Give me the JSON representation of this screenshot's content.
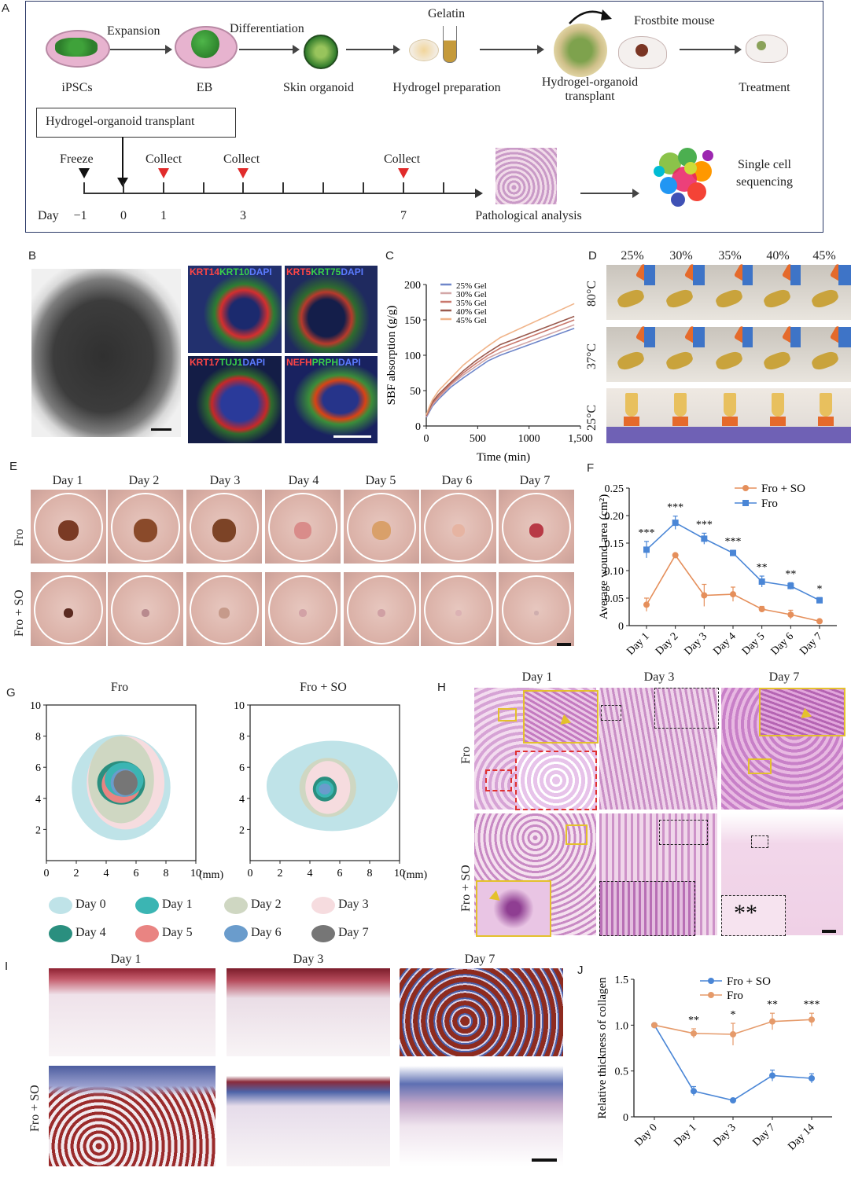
{
  "panelA": {
    "panel_label": "A",
    "steps": [
      "iPSCs",
      "EB",
      "Skin organoid",
      "Hydrogel preparation",
      "Hydrogel-organoid transplant",
      "Treatment"
    ],
    "arrows": [
      "Expansion",
      "Differentiation"
    ],
    "gelatin": "Gelatin",
    "frostbite_mouse": "Frostbite mouse",
    "timeline_box": "Hydrogel-organoid transplant",
    "freeze": "Freeze",
    "collect": "Collect",
    "day_label": "Day",
    "days": [
      "−1",
      "0",
      "1",
      "3",
      "7"
    ],
    "pathology": "Pathological analysis",
    "single_cell": "Single cell sequencing",
    "colors": {
      "collect_marker": "#e12b2b",
      "freeze_marker": "#111111"
    }
  },
  "panelB": {
    "panel_label": "B",
    "stains": [
      {
        "parts": [
          {
            "text": "KRT14",
            "color": "#ff4646"
          },
          {
            "text": "KRT10",
            "color": "#39d14a"
          },
          {
            "text": "DAPI",
            "color": "#5b7bff"
          }
        ]
      },
      {
        "parts": [
          {
            "text": "KRT5",
            "color": "#ff4646"
          },
          {
            "text": "KRT75",
            "color": "#39d14a"
          },
          {
            "text": "DAPI",
            "color": "#5b7bff"
          }
        ]
      },
      {
        "parts": [
          {
            "text": "KRT17",
            "color": "#ff4646"
          },
          {
            "text": "TUJ1",
            "color": "#39d14a"
          },
          {
            "text": "DAPI",
            "color": "#5b7bff"
          }
        ]
      },
      {
        "parts": [
          {
            "text": "NEFH",
            "color": "#ff4646"
          },
          {
            "text": "PRPH",
            "color": "#39d14a"
          },
          {
            "text": "DAPI",
            "color": "#5b7bff"
          }
        ]
      }
    ]
  },
  "panelC": {
    "panel_label": "C"
  },
  "panelD": {
    "panel_label": "D",
    "concentrations": [
      "25%",
      "30%",
      "35%",
      "40%",
      "45%"
    ],
    "temperatures": [
      "80°C",
      "37°C",
      "25°C"
    ]
  },
  "panelE": {
    "panel_label": "E",
    "days": [
      "Day 1",
      "Day 2",
      "Day 3",
      "Day 4",
      "Day 5",
      "Day 6",
      "Day 7"
    ],
    "groups": [
      "Fro",
      "Fro + SO"
    ]
  },
  "panelF": {
    "panel_label": "F"
  },
  "panelG": {
    "panel_label": "G",
    "maps": [
      "Fro",
      "Fro + SO"
    ],
    "unit": "(mm)",
    "ticks": [
      "0",
      "2",
      "4",
      "6",
      "8",
      "10"
    ],
    "legend": [
      {
        "label": "Day 0",
        "color": "#bfe3e8"
      },
      {
        "label": "Day 1",
        "color": "#3bb5b3"
      },
      {
        "label": "Day 2",
        "color": "#cfd7c2"
      },
      {
        "label": "Day 3",
        "color": "#f6dcdf"
      },
      {
        "label": "Day 4",
        "color": "#2a8f7f"
      },
      {
        "label": "Day 5",
        "color": "#e98482"
      },
      {
        "label": "Day 6",
        "color": "#6a9ccc"
      },
      {
        "label": "Day 7",
        "color": "#767676"
      }
    ]
  },
  "panelH": {
    "panel_label": "H",
    "days": [
      "Day  1",
      "Day  3",
      "Day  7"
    ],
    "groups": [
      "Fro",
      "Fro + SO"
    ],
    "asterisks": "**"
  },
  "panelI": {
    "panel_label": "I",
    "days": [
      "Day 1",
      "Day 3",
      "Day 7"
    ],
    "groups": [
      "Fro",
      "Fro + SO"
    ]
  },
  "panelJ": {
    "panel_label": "J"
  },
  "chart_data": [
    {
      "id": "C",
      "type": "line",
      "xlabel": "Time (min)",
      "ylabel": "SBF absorption (g/g)",
      "xlim": [
        0,
        1500
      ],
      "ylim": [
        0,
        200
      ],
      "xticks": [
        "0",
        "500",
        "1000",
        "1,500"
      ],
      "yticks": [
        "0",
        "50",
        "100",
        "150",
        "200"
      ],
      "legend_position": "top-left",
      "x": [
        0,
        30,
        60,
        120,
        240,
        360,
        480,
        600,
        720,
        1440
      ],
      "series": [
        {
          "name": "25% Gel",
          "color": "#6f86c9",
          "values": [
            12,
            20,
            28,
            38,
            55,
            68,
            80,
            92,
            100,
            138
          ]
        },
        {
          "name": "30% Gel",
          "color": "#d3a7a7",
          "values": [
            13,
            22,
            30,
            40,
            58,
            72,
            84,
            96,
            104,
            143
          ]
        },
        {
          "name": "35% Gel",
          "color": "#c9786d",
          "values": [
            14,
            23,
            32,
            42,
            60,
            75,
            88,
            100,
            110,
            150
          ]
        },
        {
          "name": "40% Gel",
          "color": "#9a5a4e",
          "values": [
            15,
            25,
            34,
            45,
            62,
            78,
            92,
            104,
            115,
            155
          ]
        },
        {
          "name": "45% Gel",
          "color": "#f0b48a",
          "values": [
            16,
            27,
            37,
            50,
            68,
            86,
            100,
            113,
            125,
            173
          ]
        }
      ]
    },
    {
      "id": "F",
      "type": "line",
      "ylabel": "Average wound area (cm²)",
      "ylim": [
        0,
        0.25
      ],
      "yticks": [
        "0",
        "0.05",
        "0.10",
        "0.15",
        "0.20",
        "0.25"
      ],
      "categories": [
        "Day 1",
        "Day 2",
        "Day 3",
        "Day 4",
        "Day 5",
        "Day 6",
        "Day 7"
      ],
      "legend_position": "top-right",
      "series": [
        {
          "name": "Fro + SO",
          "color": "#e58f5b",
          "values": [
            0.038,
            0.128,
            0.055,
            0.057,
            0.03,
            0.02,
            0.008
          ],
          "errors": [
            0.012,
            0.002,
            0.02,
            0.013,
            0.005,
            0.008,
            0.003
          ]
        },
        {
          "name": "Fro",
          "color": "#4a86d6",
          "values": [
            0.138,
            0.187,
            0.158,
            0.132,
            0.08,
            0.072,
            0.046
          ],
          "errors": [
            0.015,
            0.012,
            0.01,
            0.005,
            0.01,
            0.006,
            0.005
          ]
        }
      ],
      "significance": [
        "***",
        "***",
        "***",
        "***",
        "**",
        "**",
        "*"
      ]
    },
    {
      "id": "J",
      "type": "line",
      "ylabel": "Relative thickness of collagen",
      "ylim": [
        0,
        1.5
      ],
      "yticks": [
        "0",
        "0.5",
        "1.0",
        "1.5"
      ],
      "categories": [
        "Day 0",
        "Day 1",
        "Day 3",
        "Day 7",
        "Day 14"
      ],
      "legend_position": "top-center",
      "series": [
        {
          "name": "Fro + SO",
          "color": "#4a86d6",
          "values": [
            1.0,
            0.28,
            0.18,
            0.45,
            0.42
          ],
          "errors": [
            0,
            0.05,
            0.02,
            0.06,
            0.05
          ]
        },
        {
          "name": "Fro",
          "color": "#e59a6a",
          "values": [
            1.0,
            0.91,
            0.9,
            1.04,
            1.06
          ],
          "errors": [
            0,
            0.05,
            0.12,
            0.09,
            0.07
          ]
        }
      ],
      "significance": [
        "",
        "**",
        "*",
        "**",
        "***"
      ]
    }
  ]
}
